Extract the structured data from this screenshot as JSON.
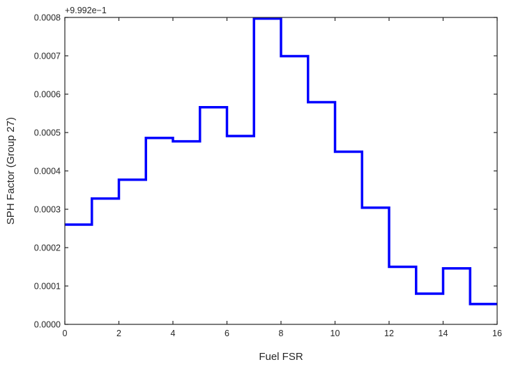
{
  "chart_data": {
    "type": "line",
    "drawstyle": "steps-post",
    "xlabel": "Fuel FSR",
    "ylabel": "SPH Factor (Group 27)",
    "offset_text": "+9.992e−1",
    "xlim": [
      0,
      16
    ],
    "ylim": [
      0,
      0.0008
    ],
    "xticks": [
      "0",
      "2",
      "4",
      "6",
      "8",
      "10",
      "12",
      "14",
      "16"
    ],
    "yticks": [
      "0.0000",
      "0.0001",
      "0.0002",
      "0.0003",
      "0.0004",
      "0.0005",
      "0.0006",
      "0.0007",
      "0.0008"
    ],
    "grid": false,
    "line_color": "#0000ff",
    "series": [
      {
        "x": [
          0,
          1,
          2,
          3,
          4,
          5,
          6,
          7,
          8,
          9,
          10,
          11,
          12,
          13,
          14,
          15,
          16
        ],
        "values": [
          0.00026,
          0.000328,
          0.000377,
          0.000486,
          0.000477,
          0.000566,
          0.000491,
          0.000797,
          0.000699,
          0.000579,
          0.00045,
          0.000304,
          0.00015,
          8e-05,
          0.000146,
          5.3e-05,
          5.3e-05
        ]
      }
    ]
  }
}
